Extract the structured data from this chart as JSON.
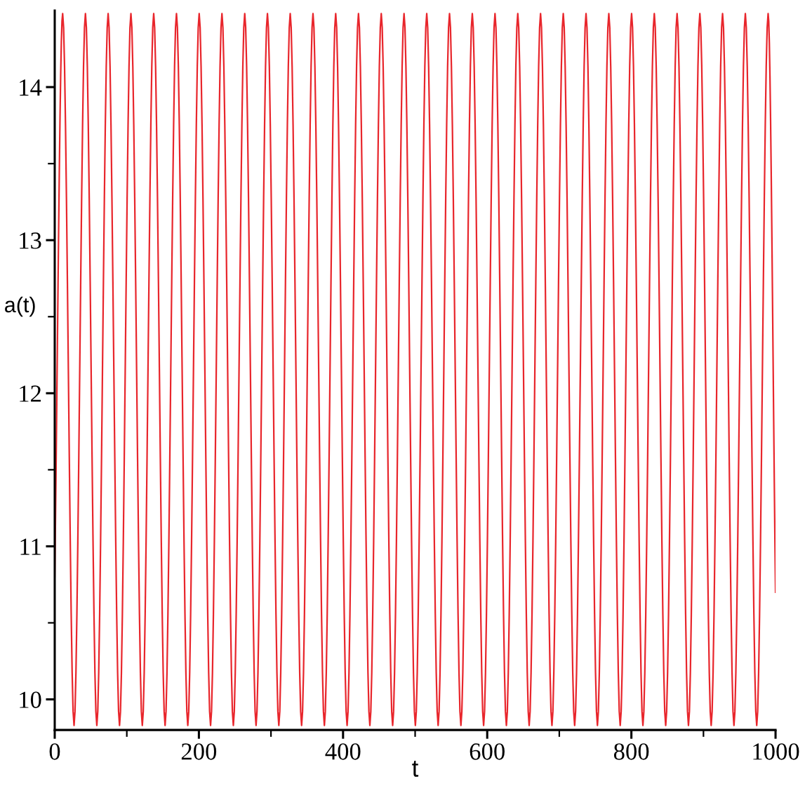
{
  "chart_data": {
    "type": "line",
    "xlabel": "t",
    "ylabel": "a(t)",
    "x": [
      0,
      11.0,
      26.8,
      42.6,
      58.4,
      74.1,
      89.9,
      105.7,
      121.5,
      137.3,
      153.1,
      168.9,
      184.6,
      200.4,
      216.2,
      232.0,
      247.8,
      263.6,
      279.3,
      295.1,
      310.9,
      326.7,
      342.5,
      358.3,
      374.1,
      389.8,
      405.6,
      421.4,
      437.2,
      453.0,
      468.8,
      484.6,
      500.3,
      516.1,
      531.9,
      547.7,
      563.5,
      579.3,
      595.0,
      610.8,
      626.6,
      642.4,
      658.2,
      674.0,
      689.8,
      705.5,
      721.3,
      737.1,
      752.9,
      768.7,
      784.5,
      800.3,
      816.0,
      831.8,
      847.6,
      863.4,
      879.2,
      895.0,
      910.7,
      926.5,
      942.3,
      958.1,
      973.9,
      989.7,
      1000
    ],
    "series": [
      {
        "color": "#e8262c",
        "values": [
          10.8,
          14.48,
          9.83,
          14.48,
          9.83,
          14.48,
          9.83,
          14.48,
          9.83,
          14.48,
          9.83,
          14.48,
          9.83,
          14.48,
          9.83,
          14.48,
          9.83,
          14.48,
          9.83,
          14.48,
          9.83,
          14.48,
          9.83,
          14.48,
          9.83,
          14.48,
          9.83,
          14.48,
          9.83,
          14.48,
          9.83,
          14.48,
          9.83,
          14.48,
          9.83,
          14.48,
          9.83,
          14.48,
          9.83,
          14.48,
          9.83,
          14.48,
          9.83,
          14.48,
          9.83,
          14.48,
          9.83,
          14.48,
          9.83,
          14.48,
          9.83,
          14.48,
          9.83,
          14.48,
          9.83,
          14.48,
          9.83,
          14.48,
          9.83,
          14.48,
          9.83,
          14.48,
          9.83,
          14.48,
          10.7
        ]
      }
    ],
    "xlim": [
      0,
      1000
    ],
    "xticks": [
      0,
      {
        "value": 100,
        "label": null
      },
      200,
      {
        "value": 300,
        "label": null
      },
      400,
      {
        "value": 500,
        "label": null
      },
      600,
      {
        "value": 700,
        "label": null
      },
      800,
      {
        "value": 900,
        "label": null
      },
      1000
    ],
    "ylim": [
      9.8,
      14.5
    ],
    "yticks": [
      10,
      {
        "value": 10.5,
        "label": null
      },
      11,
      {
        "value": 11.5,
        "label": null
      },
      12,
      {
        "value": 12.5,
        "label": null
      },
      13,
      {
        "value": 13.5,
        "label": null
      },
      14
    ],
    "line_style": "solid",
    "marker": "none"
  }
}
